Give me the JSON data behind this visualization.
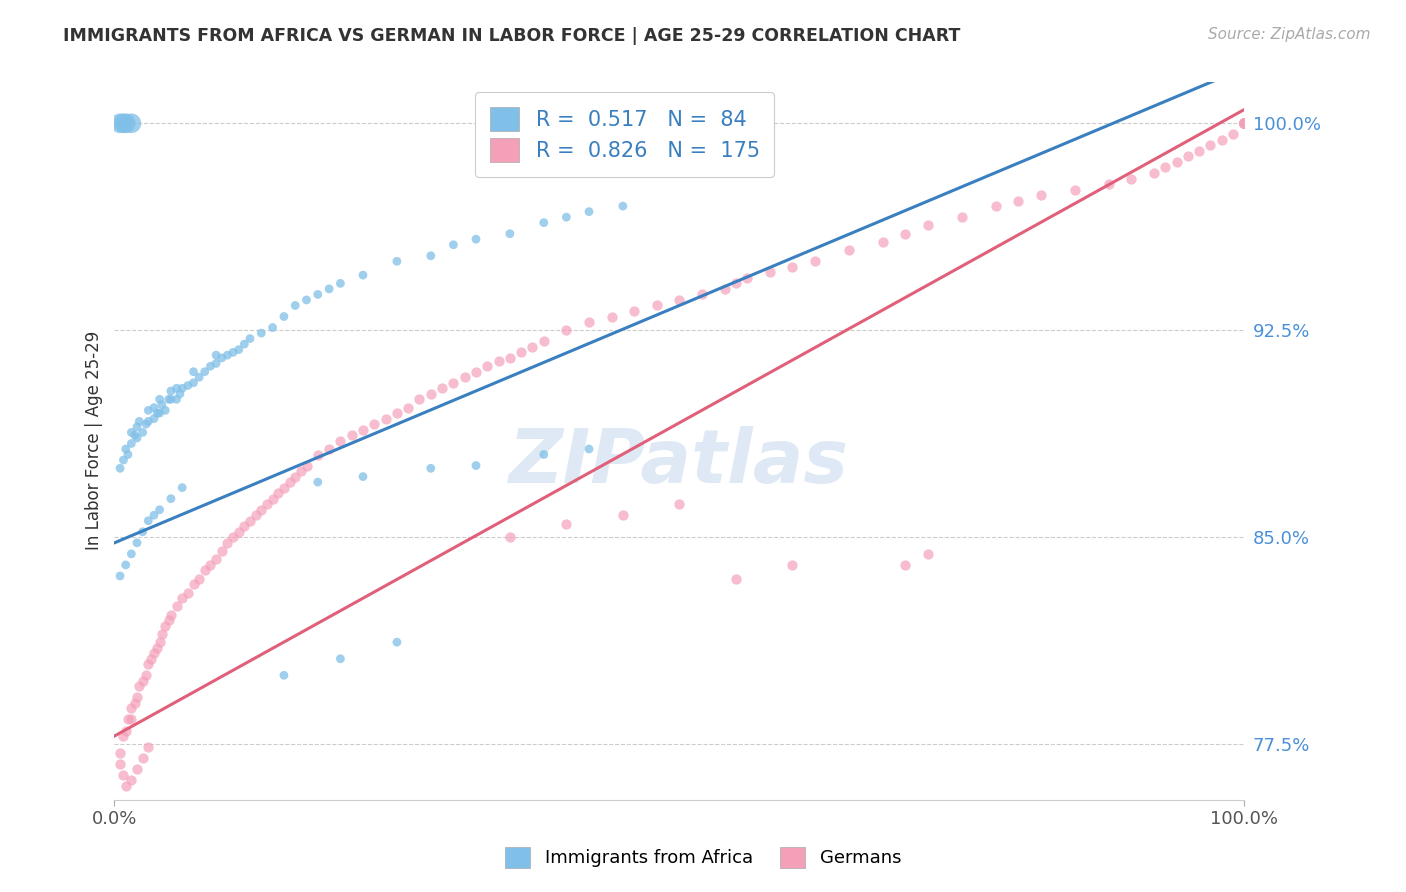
{
  "title": "IMMIGRANTS FROM AFRICA VS GERMAN IN LABOR FORCE | AGE 25-29 CORRELATION CHART",
  "source_text": "Source: ZipAtlas.com",
  "ylabel": "In Labor Force | Age 25-29",
  "xlim": [
    0.0,
    1.0
  ],
  "ylim": [
    0.755,
    1.015
  ],
  "xtick_labels": [
    "0.0%",
    "100.0%"
  ],
  "ytick_labels": [
    "77.5%",
    "85.0%",
    "92.5%",
    "100.0%"
  ],
  "ytick_values": [
    0.775,
    0.85,
    0.925,
    1.0
  ],
  "legend_r_blue": "0.517",
  "legend_n_blue": "84",
  "legend_r_pink": "0.826",
  "legend_n_pink": "175",
  "legend_label_blue": "Immigrants from Africa",
  "legend_label_pink": "Germans",
  "watermark": "ZIPatlas",
  "blue_color": "#7fbfe8",
  "pink_color": "#f4a0b8",
  "line_blue": "#3a7fbf",
  "line_pink": "#e0607a",
  "blue_scatter_x": [
    0.005,
    0.008,
    0.01,
    0.012,
    0.015,
    0.015,
    0.018,
    0.02,
    0.02,
    0.022,
    0.025,
    0.028,
    0.03,
    0.03,
    0.035,
    0.035,
    0.038,
    0.04,
    0.04,
    0.042,
    0.045,
    0.048,
    0.05,
    0.05,
    0.055,
    0.055,
    0.058,
    0.06,
    0.065,
    0.07,
    0.07,
    0.075,
    0.08,
    0.085,
    0.09,
    0.09,
    0.095,
    0.1,
    0.105,
    0.11,
    0.115,
    0.12,
    0.13,
    0.14,
    0.15,
    0.16,
    0.17,
    0.18,
    0.19,
    0.2,
    0.22,
    0.25,
    0.28,
    0.3,
    0.32,
    0.35,
    0.38,
    0.4,
    0.42,
    0.45,
    0.005,
    0.01,
    0.015,
    0.02,
    0.025,
    0.03,
    0.035,
    0.04,
    0.05,
    0.06,
    0.18,
    0.22,
    0.28,
    0.32,
    0.38,
    0.42,
    0.15,
    0.2,
    0.25,
    0.005,
    0.008,
    0.01,
    0.015
  ],
  "blue_scatter_y": [
    0.875,
    0.878,
    0.882,
    0.88,
    0.884,
    0.888,
    0.887,
    0.886,
    0.89,
    0.892,
    0.888,
    0.891,
    0.892,
    0.896,
    0.893,
    0.897,
    0.895,
    0.895,
    0.9,
    0.898,
    0.896,
    0.9,
    0.9,
    0.903,
    0.9,
    0.904,
    0.902,
    0.904,
    0.905,
    0.906,
    0.91,
    0.908,
    0.91,
    0.912,
    0.913,
    0.916,
    0.915,
    0.916,
    0.917,
    0.918,
    0.92,
    0.922,
    0.924,
    0.926,
    0.93,
    0.934,
    0.936,
    0.938,
    0.94,
    0.942,
    0.945,
    0.95,
    0.952,
    0.956,
    0.958,
    0.96,
    0.964,
    0.966,
    0.968,
    0.97,
    0.836,
    0.84,
    0.844,
    0.848,
    0.852,
    0.856,
    0.858,
    0.86,
    0.864,
    0.868,
    0.87,
    0.872,
    0.875,
    0.876,
    0.88,
    0.882,
    0.8,
    0.806,
    0.812,
    1.0,
    1.0,
    1.0,
    1.0
  ],
  "blue_scatter_sizes": [
    40,
    40,
    40,
    40,
    40,
    40,
    40,
    40,
    40,
    40,
    40,
    40,
    40,
    40,
    40,
    40,
    40,
    40,
    40,
    40,
    40,
    40,
    40,
    40,
    40,
    40,
    40,
    40,
    40,
    40,
    40,
    40,
    40,
    40,
    40,
    40,
    40,
    40,
    40,
    40,
    40,
    40,
    40,
    40,
    40,
    40,
    40,
    40,
    40,
    40,
    40,
    40,
    40,
    40,
    40,
    40,
    40,
    40,
    40,
    40,
    40,
    40,
    40,
    40,
    40,
    40,
    40,
    40,
    40,
    40,
    40,
    40,
    40,
    40,
    40,
    40,
    40,
    40,
    40,
    200,
    200,
    200,
    200
  ],
  "pink_scatter_x": [
    0.005,
    0.008,
    0.01,
    0.012,
    0.015,
    0.015,
    0.018,
    0.02,
    0.022,
    0.025,
    0.028,
    0.03,
    0.032,
    0.035,
    0.038,
    0.04,
    0.042,
    0.045,
    0.048,
    0.05,
    0.055,
    0.06,
    0.065,
    0.07,
    0.075,
    0.08,
    0.085,
    0.09,
    0.095,
    0.1,
    0.105,
    0.11,
    0.115,
    0.12,
    0.125,
    0.13,
    0.135,
    0.14,
    0.145,
    0.15,
    0.155,
    0.16,
    0.165,
    0.17,
    0.18,
    0.19,
    0.2,
    0.21,
    0.22,
    0.23,
    0.24,
    0.25,
    0.26,
    0.27,
    0.28,
    0.29,
    0.3,
    0.31,
    0.32,
    0.33,
    0.34,
    0.35,
    0.36,
    0.37,
    0.38,
    0.4,
    0.42,
    0.44,
    0.46,
    0.48,
    0.5,
    0.52,
    0.54,
    0.55,
    0.56,
    0.58,
    0.6,
    0.62,
    0.65,
    0.68,
    0.7,
    0.72,
    0.75,
    0.78,
    0.8,
    0.82,
    0.85,
    0.88,
    0.9,
    0.92,
    0.93,
    0.94,
    0.95,
    0.96,
    0.97,
    0.98,
    0.99,
    1.0,
    1.0,
    1.0,
    1.0,
    1.0,
    1.0,
    1.0,
    1.0,
    1.0,
    1.0,
    1.0,
    1.0,
    1.0,
    1.0,
    1.0,
    1.0,
    1.0,
    1.0,
    1.0,
    1.0,
    1.0,
    1.0,
    1.0,
    1.0,
    1.0,
    1.0,
    1.0,
    1.0,
    1.0,
    1.0,
    0.005,
    0.008,
    0.01,
    0.015,
    0.02,
    0.025,
    0.03,
    0.35,
    0.4,
    0.45,
    0.5,
    0.55,
    0.6,
    0.7,
    0.72
  ],
  "pink_scatter_y": [
    0.772,
    0.778,
    0.78,
    0.784,
    0.784,
    0.788,
    0.79,
    0.792,
    0.796,
    0.798,
    0.8,
    0.804,
    0.806,
    0.808,
    0.81,
    0.812,
    0.815,
    0.818,
    0.82,
    0.822,
    0.825,
    0.828,
    0.83,
    0.833,
    0.835,
    0.838,
    0.84,
    0.842,
    0.845,
    0.848,
    0.85,
    0.852,
    0.854,
    0.856,
    0.858,
    0.86,
    0.862,
    0.864,
    0.866,
    0.868,
    0.87,
    0.872,
    0.874,
    0.876,
    0.88,
    0.882,
    0.885,
    0.887,
    0.889,
    0.891,
    0.893,
    0.895,
    0.897,
    0.9,
    0.902,
    0.904,
    0.906,
    0.908,
    0.91,
    0.912,
    0.914,
    0.915,
    0.917,
    0.919,
    0.921,
    0.925,
    0.928,
    0.93,
    0.932,
    0.934,
    0.936,
    0.938,
    0.94,
    0.942,
    0.944,
    0.946,
    0.948,
    0.95,
    0.954,
    0.957,
    0.96,
    0.963,
    0.966,
    0.97,
    0.972,
    0.974,
    0.976,
    0.978,
    0.98,
    0.982,
    0.984,
    0.986,
    0.988,
    0.99,
    0.992,
    0.994,
    0.996,
    1.0,
    1.0,
    1.0,
    1.0,
    1.0,
    1.0,
    1.0,
    1.0,
    1.0,
    1.0,
    1.0,
    1.0,
    1.0,
    1.0,
    1.0,
    1.0,
    1.0,
    1.0,
    1.0,
    1.0,
    1.0,
    1.0,
    1.0,
    1.0,
    1.0,
    1.0,
    1.0,
    1.0,
    1.0,
    1.0,
    0.768,
    0.764,
    0.76,
    0.762,
    0.766,
    0.77,
    0.774,
    0.85,
    0.855,
    0.858,
    0.862,
    0.835,
    0.84,
    0.84,
    0.844
  ],
  "blue_trendline_x": [
    0.0,
    1.0
  ],
  "blue_trendline_y": [
    0.848,
    1.02
  ],
  "pink_trendline_x": [
    0.0,
    1.0
  ],
  "pink_trendline_y": [
    0.778,
    1.005
  ]
}
